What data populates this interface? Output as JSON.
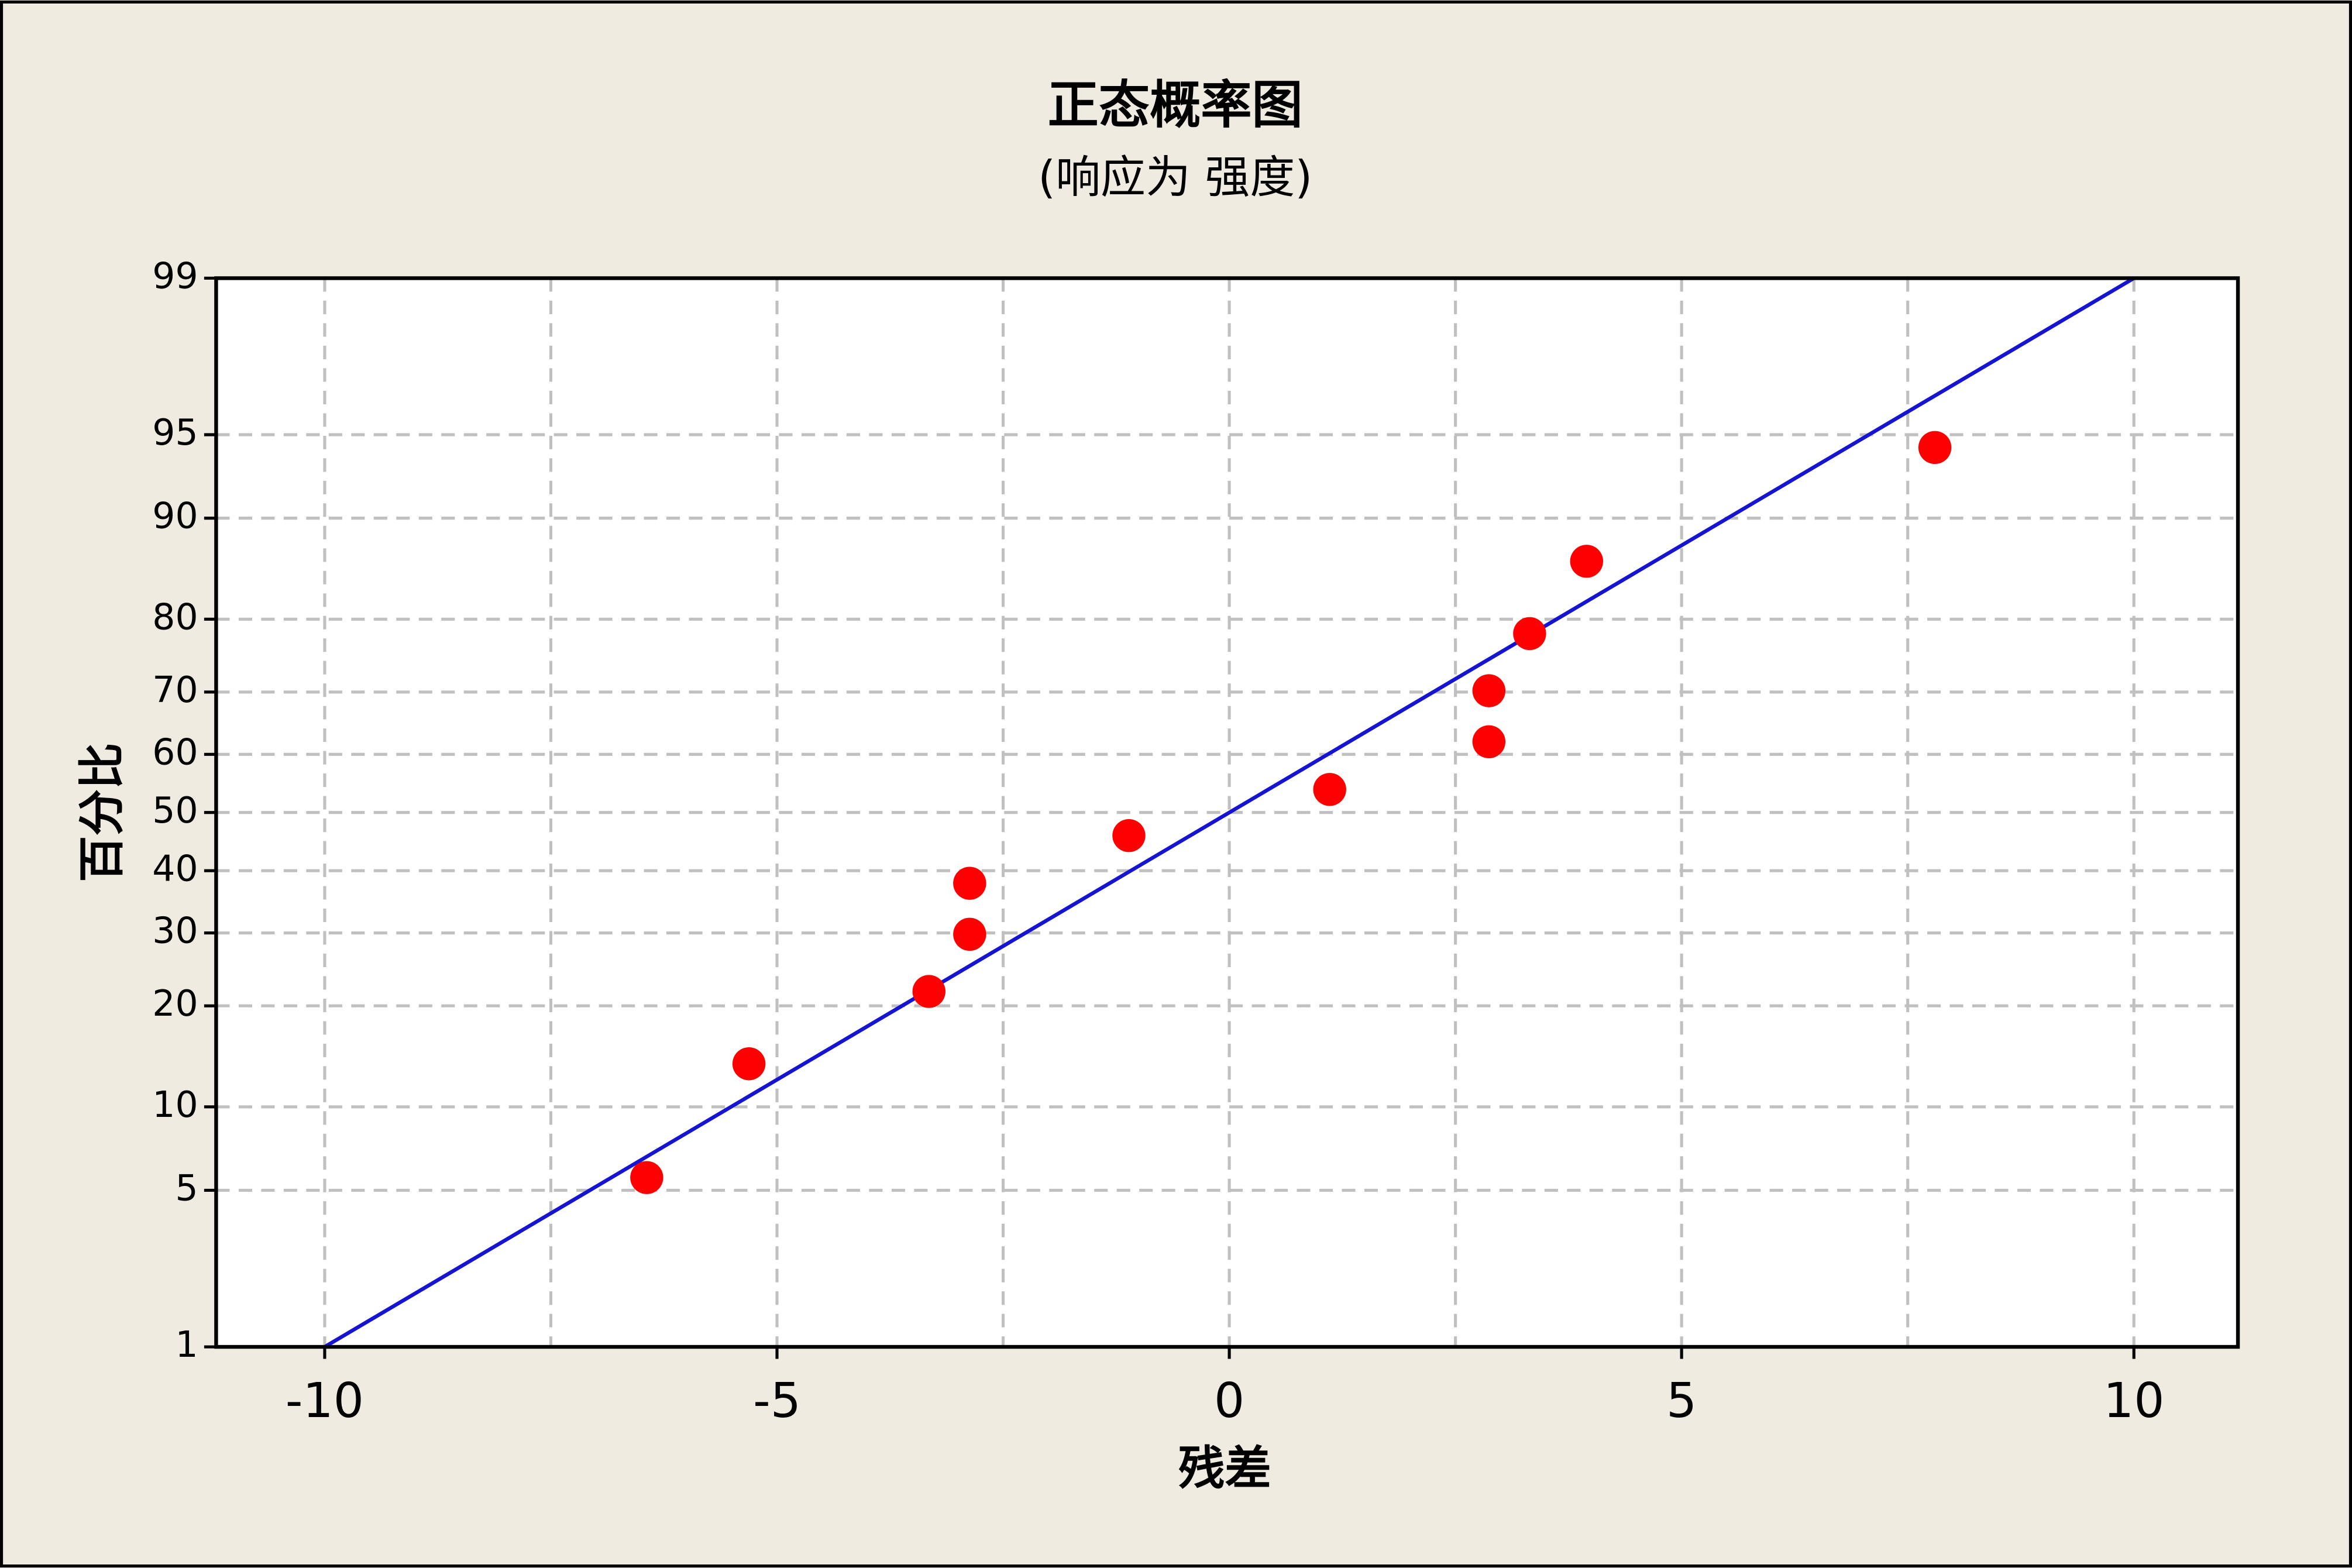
{
  "chart_data": {
    "type": "probability",
    "title": "正态概率图",
    "subtitle": "(响应为 强度)",
    "x_label": "残差",
    "y_label": "百分比",
    "y_scale": "probability",
    "grid": true,
    "points": {
      "x": [
        -6.44,
        -5.31,
        -3.32,
        -2.87,
        -2.87,
        -1.11,
        1.11,
        2.87,
        2.87,
        3.32,
        3.95,
        7.8
      ],
      "values": [
        5.6,
        13.7,
        21.8,
        29.8,
        37.9,
        46.0,
        54.0,
        62.1,
        70.2,
        78.2,
        86.3,
        94.4
      ],
      "color": "#ff0000"
    },
    "fit_line": {
      "x": [
        -10,
        10
      ],
      "values": [
        1,
        99
      ],
      "color": "#1414d2"
    },
    "xlim": [
      -11.2,
      11.15
    ],
    "xticks": [
      -10,
      -5,
      0,
      5,
      10
    ],
    "x_minor_grid": [
      -7.5,
      -2.5,
      2.5,
      7.5
    ],
    "ylim": [
      1,
      99
    ],
    "yticks": [
      1,
      5,
      10,
      20,
      30,
      40,
      50,
      60,
      70,
      80,
      90,
      95,
      99
    ]
  }
}
